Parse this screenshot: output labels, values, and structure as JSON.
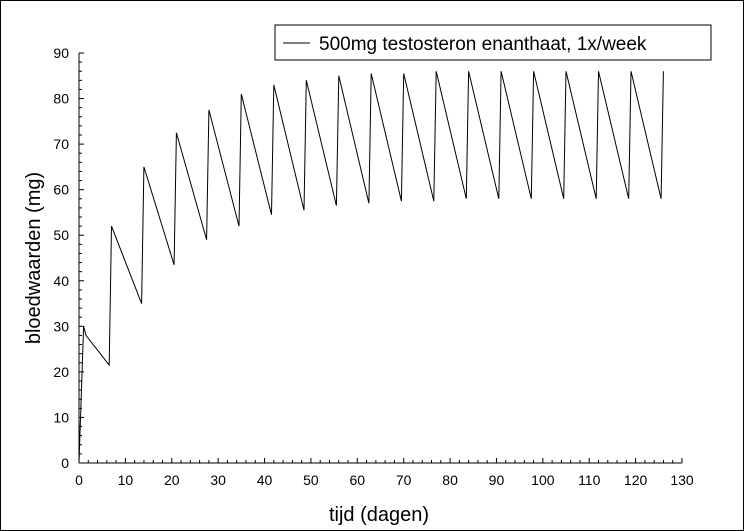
{
  "chart_data": {
    "type": "line",
    "title": "500mg testosteron enanthaat, 1x/week",
    "xlabel": "tijd (dagen)",
    "ylabel": "bloedwaarden (mg)",
    "xlim": [
      0,
      130
    ],
    "ylim": [
      0,
      90
    ],
    "xticks": [
      0,
      10,
      20,
      30,
      40,
      50,
      60,
      70,
      80,
      90,
      100,
      110,
      120,
      130
    ],
    "yticks": [
      0,
      10,
      20,
      30,
      40,
      50,
      60,
      70,
      80,
      90
    ],
    "grid": false,
    "legend_position": "top-right",
    "series": [
      {
        "name": "500mg testosteron enanthaat, 1x/week",
        "x": [
          0,
          1,
          1.5,
          6.5,
          7,
          13.5,
          14,
          20.5,
          21,
          27.5,
          28,
          34.5,
          35,
          41.5,
          42,
          48.5,
          49,
          55.5,
          56,
          62.5,
          63,
          69.5,
          70,
          76.5,
          77,
          83.5,
          84,
          90.5,
          91,
          97.5,
          98,
          104.5,
          105,
          111.5,
          112,
          118.5,
          119,
          125.5,
          126
        ],
        "y": [
          0,
          30,
          28,
          21.5,
          52,
          35,
          65,
          43.5,
          72.5,
          49,
          77.5,
          52,
          81,
          54.5,
          83,
          55.5,
          84,
          56.5,
          85,
          57,
          85.5,
          57.5,
          85.5,
          57.5,
          86,
          58,
          86,
          58,
          86,
          58,
          86,
          58,
          86,
          58,
          86,
          58,
          86,
          58,
          86
        ]
      }
    ]
  }
}
